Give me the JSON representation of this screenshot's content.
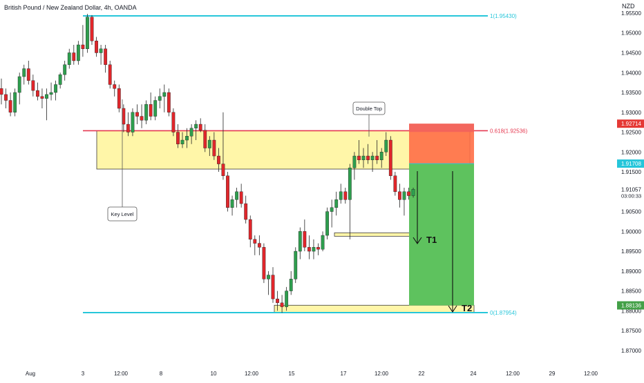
{
  "header": {
    "symbol_title": "British Pound / New Zealand Dollar, 4h, OANDA",
    "currency": "NZD"
  },
  "colors": {
    "up": "#2e9e4e",
    "down": "#e0262b",
    "zone_fill": "#fff6a8",
    "zone_border": "#3a3a3a",
    "cyan_line": "#26c6da",
    "red_line": "#e53950",
    "stop_fill": "#ff6f47",
    "stop_top": "#ef6060",
    "target_fill": "#5ec25e",
    "price_tag_red": "#e53935",
    "price_tag_cyan": "#26c6da",
    "price_tag_green": "#43a047"
  },
  "chart_data": {
    "type": "candlestick",
    "title": "British Pound / New Zealand Dollar, 4h, OANDA",
    "ylabel": "NZD",
    "ylim": [
      1.8665,
      1.9583
    ],
    "grid": false,
    "x_ticks": [
      "Aug",
      "3",
      "12:00",
      "8",
      "10",
      "12:00",
      "15",
      "17",
      "12:00",
      "22",
      "24",
      "12:00",
      "29",
      "12:00"
    ],
    "y_ticks": [
      "1.95500",
      "1.95000",
      "1.94500",
      "1.94000",
      "1.93500",
      "1.93000",
      "1.92500",
      "1.92000",
      "1.91500",
      "1.90500",
      "1.90000",
      "1.89500",
      "1.89000",
      "1.88500",
      "1.88000",
      "1.87500",
      "1.87000"
    ],
    "candles": [
      {
        "o": 1.936,
        "h": 1.9385,
        "l": 1.932,
        "c": 1.9345
      },
      {
        "o": 1.9345,
        "h": 1.936,
        "l": 1.931,
        "c": 1.933
      },
      {
        "o": 1.933,
        "h": 1.935,
        "l": 1.929,
        "c": 1.93
      },
      {
        "o": 1.93,
        "h": 1.936,
        "l": 1.929,
        "c": 1.935
      },
      {
        "o": 1.935,
        "h": 1.94,
        "l": 1.932,
        "c": 1.939
      },
      {
        "o": 1.939,
        "h": 1.942,
        "l": 1.937,
        "c": 1.941
      },
      {
        "o": 1.941,
        "h": 1.943,
        "l": 1.937,
        "c": 1.938
      },
      {
        "o": 1.938,
        "h": 1.9395,
        "l": 1.934,
        "c": 1.9355
      },
      {
        "o": 1.9355,
        "h": 1.9375,
        "l": 1.933,
        "c": 1.934
      },
      {
        "o": 1.934,
        "h": 1.936,
        "l": 1.931,
        "c": 1.9335
      },
      {
        "o": 1.9335,
        "h": 1.936,
        "l": 1.928,
        "c": 1.9345
      },
      {
        "o": 1.9345,
        "h": 1.9375,
        "l": 1.933,
        "c": 1.935
      },
      {
        "o": 1.935,
        "h": 1.938,
        "l": 1.933,
        "c": 1.937
      },
      {
        "o": 1.937,
        "h": 1.94,
        "l": 1.936,
        "c": 1.9395
      },
      {
        "o": 1.9395,
        "h": 1.943,
        "l": 1.938,
        "c": 1.942
      },
      {
        "o": 1.942,
        "h": 1.946,
        "l": 1.941,
        "c": 1.945
      },
      {
        "o": 1.945,
        "h": 1.947,
        "l": 1.942,
        "c": 1.943
      },
      {
        "o": 1.943,
        "h": 1.948,
        "l": 1.942,
        "c": 1.947
      },
      {
        "o": 1.947,
        "h": 1.952,
        "l": 1.944,
        "c": 1.946
      },
      {
        "o": 1.946,
        "h": 1.9548,
        "l": 1.945,
        "c": 1.954
      },
      {
        "o": 1.954,
        "h": 1.9545,
        "l": 1.947,
        "c": 1.948
      },
      {
        "o": 1.948,
        "h": 1.949,
        "l": 1.944,
        "c": 1.945
      },
      {
        "o": 1.945,
        "h": 1.947,
        "l": 1.942,
        "c": 1.946
      },
      {
        "o": 1.946,
        "h": 1.947,
        "l": 1.94,
        "c": 1.942
      },
      {
        "o": 1.942,
        "h": 1.943,
        "l": 1.936,
        "c": 1.937
      },
      {
        "o": 1.937,
        "h": 1.938,
        "l": 1.934,
        "c": 1.936
      },
      {
        "o": 1.936,
        "h": 1.937,
        "l": 1.93,
        "c": 1.931
      },
      {
        "o": 1.931,
        "h": 1.932,
        "l": 1.925,
        "c": 1.927
      },
      {
        "o": 1.927,
        "h": 1.93,
        "l": 1.924,
        "c": 1.925
      },
      {
        "o": 1.925,
        "h": 1.931,
        "l": 1.924,
        "c": 1.93
      },
      {
        "o": 1.93,
        "h": 1.932,
        "l": 1.927,
        "c": 1.929
      },
      {
        "o": 1.929,
        "h": 1.932,
        "l": 1.926,
        "c": 1.928
      },
      {
        "o": 1.928,
        "h": 1.933,
        "l": 1.927,
        "c": 1.932
      },
      {
        "o": 1.932,
        "h": 1.935,
        "l": 1.928,
        "c": 1.929
      },
      {
        "o": 1.929,
        "h": 1.934,
        "l": 1.928,
        "c": 1.933
      },
      {
        "o": 1.933,
        "h": 1.936,
        "l": 1.931,
        "c": 1.934
      },
      {
        "o": 1.934,
        "h": 1.937,
        "l": 1.93,
        "c": 1.935
      },
      {
        "o": 1.935,
        "h": 1.936,
        "l": 1.929,
        "c": 1.93
      },
      {
        "o": 1.93,
        "h": 1.931,
        "l": 1.924,
        "c": 1.925
      },
      {
        "o": 1.925,
        "h": 1.927,
        "l": 1.921,
        "c": 1.922
      },
      {
        "o": 1.922,
        "h": 1.925,
        "l": 1.921,
        "c": 1.923
      },
      {
        "o": 1.923,
        "h": 1.926,
        "l": 1.921,
        "c": 1.924
      },
      {
        "o": 1.924,
        "h": 1.927,
        "l": 1.922,
        "c": 1.926
      },
      {
        "o": 1.926,
        "h": 1.928,
        "l": 1.923,
        "c": 1.927
      },
      {
        "o": 1.927,
        "h": 1.9285,
        "l": 1.925,
        "c": 1.9255
      },
      {
        "o": 1.9255,
        "h": 1.927,
        "l": 1.92,
        "c": 1.921
      },
      {
        "o": 1.921,
        "h": 1.924,
        "l": 1.919,
        "c": 1.923
      },
      {
        "o": 1.923,
        "h": 1.925,
        "l": 1.918,
        "c": 1.919
      },
      {
        "o": 1.919,
        "h": 1.921,
        "l": 1.915,
        "c": 1.917
      },
      {
        "o": 1.917,
        "h": 1.93,
        "l": 1.913,
        "c": 1.914
      },
      {
        "o": 1.914,
        "h": 1.915,
        "l": 1.905,
        "c": 1.906
      },
      {
        "o": 1.906,
        "h": 1.909,
        "l": 1.904,
        "c": 1.908
      },
      {
        "o": 1.908,
        "h": 1.911,
        "l": 1.906,
        "c": 1.91
      },
      {
        "o": 1.91,
        "h": 1.912,
        "l": 1.906,
        "c": 1.907
      },
      {
        "o": 1.907,
        "h": 1.909,
        "l": 1.902,
        "c": 1.903
      },
      {
        "o": 1.903,
        "h": 1.904,
        "l": 1.896,
        "c": 1.898
      },
      {
        "o": 1.898,
        "h": 1.899,
        "l": 1.894,
        "c": 1.897
      },
      {
        "o": 1.897,
        "h": 1.899,
        "l": 1.894,
        "c": 1.896
      },
      {
        "o": 1.896,
        "h": 1.897,
        "l": 1.887,
        "c": 1.888
      },
      {
        "o": 1.888,
        "h": 1.89,
        "l": 1.884,
        "c": 1.889
      },
      {
        "o": 1.889,
        "h": 1.891,
        "l": 1.882,
        "c": 1.883
      },
      {
        "o": 1.883,
        "h": 1.885,
        "l": 1.88,
        "c": 1.882
      },
      {
        "o": 1.882,
        "h": 1.884,
        "l": 1.8795,
        "c": 1.881
      },
      {
        "o": 1.881,
        "h": 1.886,
        "l": 1.88,
        "c": 1.885
      },
      {
        "o": 1.885,
        "h": 1.89,
        "l": 1.884,
        "c": 1.888
      },
      {
        "o": 1.888,
        "h": 1.896,
        "l": 1.887,
        "c": 1.895
      },
      {
        "o": 1.895,
        "h": 1.901,
        "l": 1.893,
        "c": 1.9
      },
      {
        "o": 1.9,
        "h": 1.903,
        "l": 1.895,
        "c": 1.896
      },
      {
        "o": 1.896,
        "h": 1.899,
        "l": 1.893,
        "c": 1.895
      },
      {
        "o": 1.895,
        "h": 1.898,
        "l": 1.893,
        "c": 1.896
      },
      {
        "o": 1.896,
        "h": 1.897,
        "l": 1.894,
        "c": 1.8955
      },
      {
        "o": 1.8955,
        "h": 1.9,
        "l": 1.895,
        "c": 1.899
      },
      {
        "o": 1.899,
        "h": 1.906,
        "l": 1.898,
        "c": 1.905
      },
      {
        "o": 1.905,
        "h": 1.908,
        "l": 1.901,
        "c": 1.906
      },
      {
        "o": 1.906,
        "h": 1.91,
        "l": 1.904,
        "c": 1.908
      },
      {
        "o": 1.908,
        "h": 1.912,
        "l": 1.907,
        "c": 1.91
      },
      {
        "o": 1.91,
        "h": 1.911,
        "l": 1.907,
        "c": 1.908
      },
      {
        "o": 1.908,
        "h": 1.917,
        "l": 1.898,
        "c": 1.916
      },
      {
        "o": 1.916,
        "h": 1.92,
        "l": 1.913,
        "c": 1.919
      },
      {
        "o": 1.919,
        "h": 1.923,
        "l": 1.917,
        "c": 1.918
      },
      {
        "o": 1.918,
        "h": 1.921,
        "l": 1.916,
        "c": 1.919
      },
      {
        "o": 1.919,
        "h": 1.922,
        "l": 1.917,
        "c": 1.918
      },
      {
        "o": 1.918,
        "h": 1.92,
        "l": 1.915,
        "c": 1.919
      },
      {
        "o": 1.919,
        "h": 1.923,
        "l": 1.917,
        "c": 1.918
      },
      {
        "o": 1.918,
        "h": 1.921,
        "l": 1.916,
        "c": 1.92
      },
      {
        "o": 1.92,
        "h": 1.925,
        "l": 1.919,
        "c": 1.923
      },
      {
        "o": 1.923,
        "h": 1.924,
        "l": 1.913,
        "c": 1.914
      },
      {
        "o": 1.914,
        "h": 1.915,
        "l": 1.909,
        "c": 1.91
      },
      {
        "o": 1.91,
        "h": 1.912,
        "l": 1.906,
        "c": 1.908
      },
      {
        "o": 1.908,
        "h": 1.911,
        "l": 1.904,
        "c": 1.91
      },
      {
        "o": 1.91,
        "h": 1.911,
        "l": 1.908,
        "c": 1.909
      },
      {
        "o": 1.909,
        "h": 1.911,
        "l": 1.9085,
        "c": 1.9106
      }
    ],
    "horizontal_lines": [
      {
        "label": "1(1.95430)",
        "price": 1.9543
      },
      {
        "label": "0.618(1.92536)",
        "price": 1.92536
      },
      {
        "label": "0(1.87954)",
        "price": 1.87954
      }
    ],
    "zones": [
      {
        "name": "key-zone",
        "top": 1.92536,
        "bottom": 1.9157
      },
      {
        "name": "t1-zone",
        "top": 1.8993,
        "bottom": 1.8985
      },
      {
        "name": "t2-zone",
        "top": 1.8814,
        "bottom": 1.87954
      }
    ],
    "position": {
      "entry": 1.91708,
      "stop": 1.92714,
      "target": 1.88136
    },
    "annotations": [
      {
        "text": "Double Top"
      },
      {
        "text": "Key Level"
      },
      {
        "text": "T1"
      },
      {
        "text": "T2"
      }
    ],
    "price_tags": [
      {
        "text": "1.92714",
        "price": 1.92714,
        "kind": "red"
      },
      {
        "text": "1.91708",
        "price": 1.91708,
        "kind": "cyan"
      },
      {
        "text": "1.91057",
        "price": 1.91057,
        "kind": "plain",
        "subtext": "03:00:33"
      },
      {
        "text": "1.88136",
        "price": 1.88136,
        "kind": "green"
      }
    ]
  }
}
